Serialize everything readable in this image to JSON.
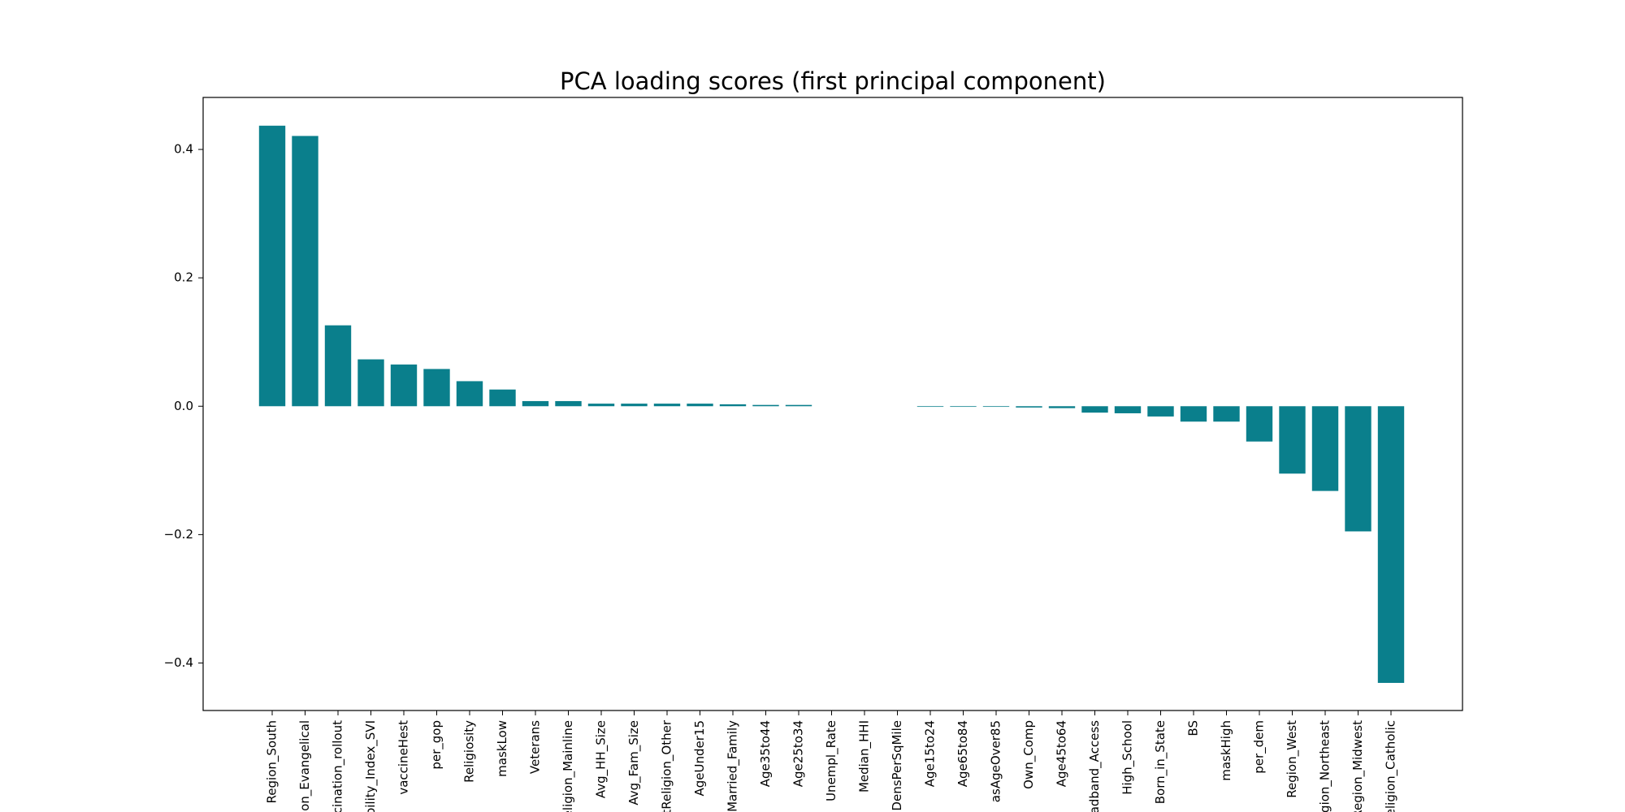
{
  "chart_data": {
    "type": "bar",
    "title": "PCA loading scores (first principal component)",
    "categories": [
      "Region_South",
      "gion_Evangelical",
      "ccination_rollout",
      "ability_Index_SVI",
      "vaccineHest",
      "per_gop",
      "Religiosity",
      "maskLow",
      "Veterans",
      "eligion_Mainline",
      "Avg_HH_Size",
      "Avg_Fam_Size",
      "ntReligion_Other",
      "AgeUnder15",
      "Married_Family",
      "Age35to44",
      "Age25to34",
      "Unempl_Rate",
      "Median_HHI",
      "DensPerSqMile",
      "Age15to24",
      "Age65to84",
      "asAgeOver85",
      "Own_Comp",
      "Age45to64",
      "oadband_Access",
      "High_School",
      "Born_in_State",
      "BS",
      "maskHigh",
      "per_dem",
      "Region_West",
      "egion_Northeast",
      "Region_Midwest",
      "eligion_Catholic"
    ],
    "values": [
      0.437,
      0.421,
      0.126,
      0.073,
      0.065,
      0.058,
      0.039,
      0.026,
      0.008,
      0.008,
      0.004,
      0.004,
      0.004,
      0.004,
      0.003,
      0.002,
      0.002,
      0.0,
      0.0,
      0.0,
      -0.001,
      -0.001,
      -0.001,
      -0.002,
      -0.003,
      -0.01,
      -0.011,
      -0.016,
      -0.024,
      -0.024,
      -0.055,
      -0.105,
      -0.132,
      -0.195,
      -0.431
    ],
    "color": "#0a7f8c",
    "ylim": [
      -0.474,
      0.481
    ],
    "yticks": [
      {
        "value": -0.4,
        "label": "−0.4"
      },
      {
        "value": -0.2,
        "label": "−0.2"
      },
      {
        "value": 0,
        "label": "0.0"
      },
      0.2,
      0.4
    ],
    "grid": false
  }
}
